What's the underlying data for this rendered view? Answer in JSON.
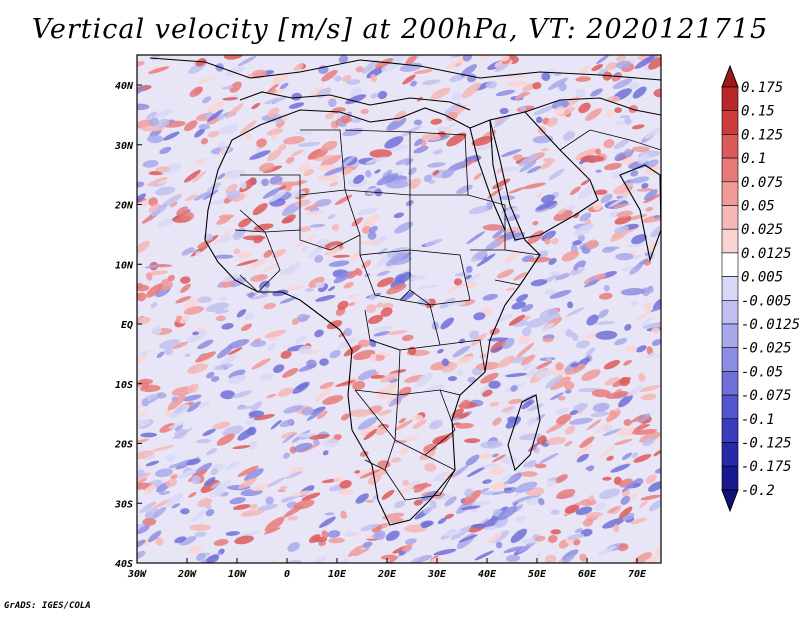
{
  "title": "Vertical velocity [m/s] at 200hPa, VT: 2020121715",
  "credit": "GrADS: IGES/COLA",
  "map": {
    "lon_range": [
      -30,
      75
    ],
    "lat_range": [
      -40,
      45
    ],
    "lon_ticks": [
      "30W",
      "20W",
      "10W",
      "0",
      "10E",
      "20E",
      "30E",
      "40E",
      "50E",
      "60E",
      "70E"
    ],
    "lat_ticks": [
      "40N",
      "30N",
      "20N",
      "10N",
      "EQ",
      "10S",
      "20S",
      "30S",
      "40S"
    ],
    "field": "vertical velocity",
    "units": "m/s",
    "level": "200hPa"
  },
  "colorbar": {
    "levels": [
      "0.175",
      "0.15",
      "0.125",
      "0.1",
      "0.075",
      "0.05",
      "0.025",
      "0.0125",
      "0.005",
      "-0.005",
      "-0.0125",
      "-0.025",
      "-0.05",
      "-0.075",
      "-0.1",
      "-0.125",
      "-0.175",
      "-0.2"
    ],
    "colors": [
      "#a01818",
      "#b82828",
      "#cc3c3c",
      "#dc5a5a",
      "#e87a7a",
      "#f09a9a",
      "#f6b8b8",
      "#fad4d4",
      "#ffffff",
      "#d8d8f6",
      "#c0c0f0",
      "#a8a8ea",
      "#8c8ce2",
      "#7070d8",
      "#5454cc",
      "#3c3cbe",
      "#2828a8",
      "#1a1a90",
      "#10107a"
    ]
  }
}
